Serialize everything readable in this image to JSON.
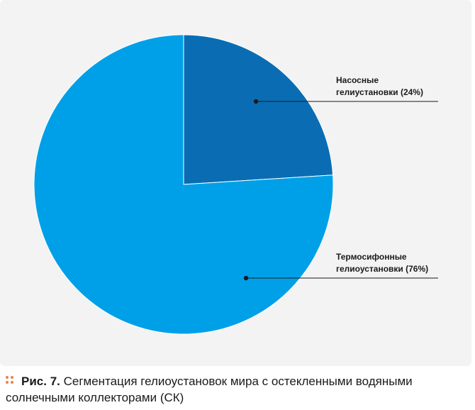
{
  "chart_data": {
    "type": "pie",
    "start_angle_deg": 0,
    "direction": "clockwise",
    "slices": [
      {
        "label_lines": [
          "Насосные",
          "гелиустановки (24%)"
        ],
        "value": 24,
        "color": "#0a6db3"
      },
      {
        "label_lines": [
          "Термосифонные",
          "гелиоустановки (76%)"
        ],
        "value": 76,
        "color": "#00a0e8"
      }
    ],
    "label_colors": {
      "text": "#1a1a1a",
      "leader": "#1a1a1a",
      "slice_border": "#ffffff"
    }
  },
  "caption": {
    "prefix": "Рис. 7.",
    "text": "Сегментация гелиоустановок мира с остекленными водяными солнечными коллекторами (СК)",
    "bullet_color": "#e8834f"
  }
}
